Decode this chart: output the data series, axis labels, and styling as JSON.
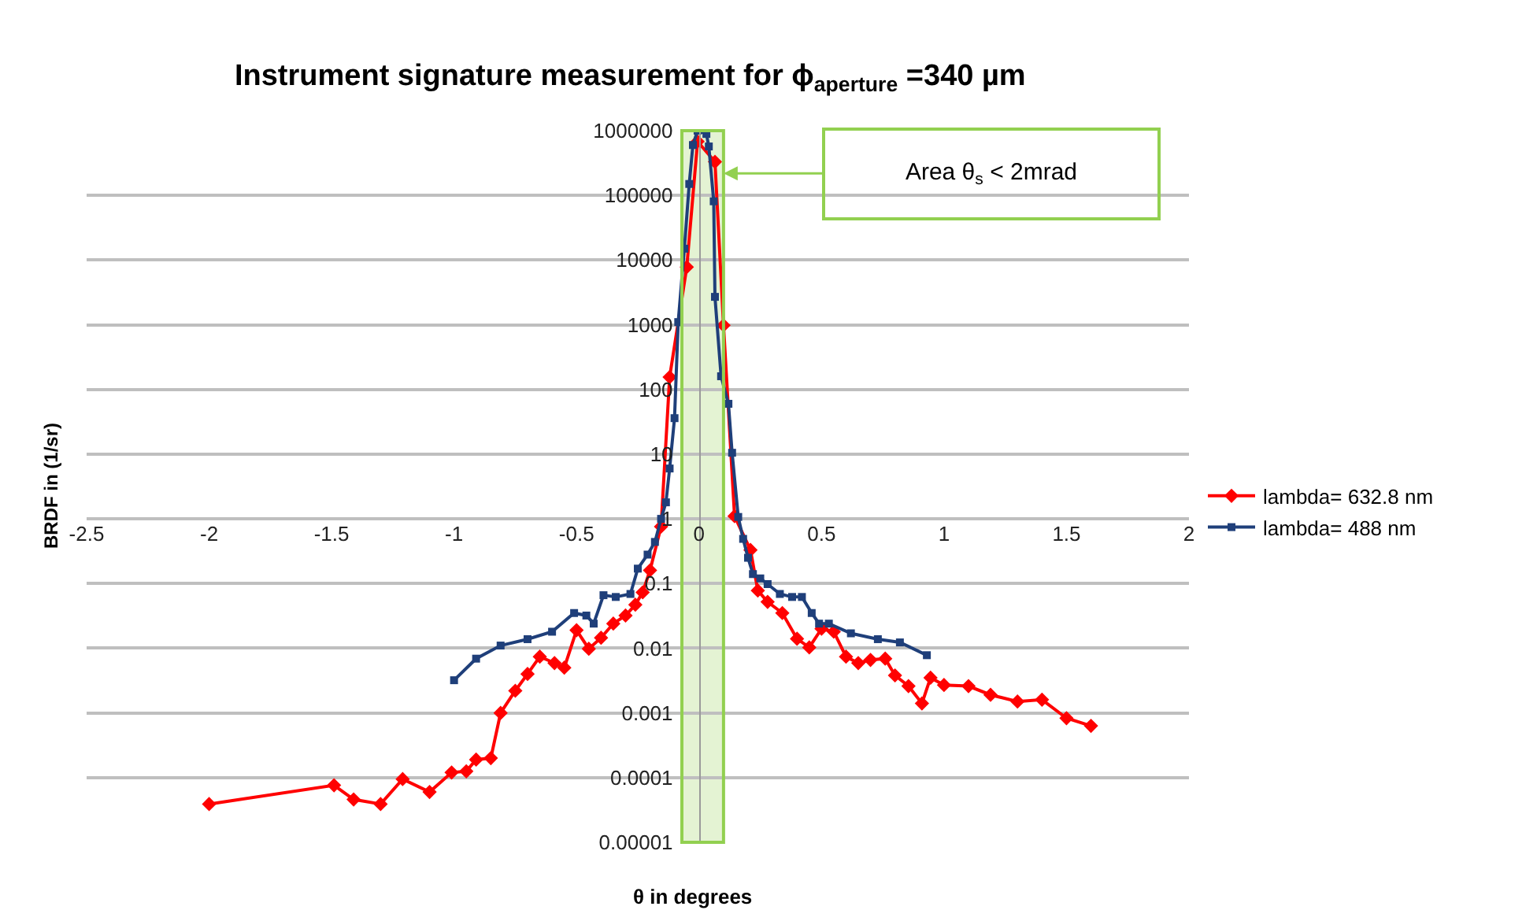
{
  "chart_data": {
    "type": "line",
    "title": "Instrument signature measurement for ϕ$_{aperture}$ =340 µm",
    "xlabel": "θ in degrees",
    "ylabel": "BRDF in (1/sr)",
    "log": "y",
    "xlim": [
      -2.5,
      2
    ],
    "xticks": [
      -2.5,
      -2,
      -1.5,
      -1,
      -0.5,
      0,
      0.5,
      1,
      1.5,
      2
    ],
    "ylim": [
      1e-05,
      1000000
    ],
    "yticks": [
      {
        "value": 1e-05,
        "label": "0.00001"
      },
      0.0001,
      0.001,
      0.01,
      0.1,
      1,
      10,
      100,
      1000,
      10000,
      100000,
      1000000
    ],
    "grid": "y",
    "legend": "right",
    "series": [
      {
        "name": "lambda= 632.8 nm",
        "color": "#ff0000",
        "marker": "diamond",
        "x": [
          -2.0,
          -1.49,
          -1.41,
          -1.3,
          -1.21,
          -1.1,
          -1.01,
          -0.95,
          -0.91,
          -0.85,
          -0.81,
          -0.75,
          -0.7,
          -0.65,
          -0.59,
          -0.55,
          -0.5,
          -0.45,
          -0.4,
          -0.35,
          -0.3,
          -0.26,
          -0.23,
          -0.2,
          -0.155,
          -0.12,
          -0.05,
          -0.006,
          0.065,
          0.1,
          0.145,
          0.21,
          0.24,
          0.28,
          0.34,
          0.4,
          0.45,
          0.5,
          0.55,
          0.6,
          0.65,
          0.7,
          0.76,
          0.8,
          0.855,
          0.91,
          0.945,
          1.0,
          1.1,
          1.19,
          1.3,
          1.4,
          1.5,
          1.6
        ],
        "values": [
          3.9e-05,
          7.6e-05,
          4.6e-05,
          3.9e-05,
          9.5e-05,
          6e-05,
          0.00012,
          0.000125,
          0.00019,
          0.0002,
          0.001,
          0.0022,
          0.004,
          0.0074,
          0.0059,
          0.005,
          0.019,
          0.0098,
          0.0145,
          0.024,
          0.032,
          0.047,
          0.073,
          0.16,
          0.76,
          155,
          7800,
          680000,
          330000,
          980,
          1.1,
          0.33,
          0.078,
          0.052,
          0.035,
          0.014,
          0.0103,
          0.02,
          0.018,
          0.0074,
          0.0059,
          0.0066,
          0.0069,
          0.0038,
          0.0026,
          0.0014,
          0.0035,
          0.0027,
          0.0026,
          0.0019,
          0.0015,
          0.0016,
          0.00083,
          0.00063
        ]
      },
      {
        "name": "lambda= 488 nm",
        "color": "#1f3f7a",
        "marker": "square",
        "x": [
          -1.0,
          -0.91,
          -0.81,
          -0.7,
          -0.6,
          -0.51,
          -0.46,
          -0.43,
          -0.39,
          -0.34,
          -0.28,
          -0.25,
          -0.21,
          -0.18,
          -0.155,
          -0.135,
          -0.12,
          -0.1,
          -0.085,
          -0.06,
          -0.04,
          -0.025,
          -0.006,
          0.03,
          0.04,
          0.06,
          0.065,
          0.09,
          0.12,
          0.135,
          0.16,
          0.18,
          0.2,
          0.22,
          0.25,
          0.28,
          0.33,
          0.38,
          0.42,
          0.46,
          0.49,
          0.53,
          0.62,
          0.73,
          0.82,
          0.93
        ],
        "values": [
          0.0032,
          0.0069,
          0.011,
          0.0138,
          0.018,
          0.035,
          0.032,
          0.024,
          0.066,
          0.062,
          0.069,
          0.17,
          0.28,
          0.44,
          1.0,
          1.8,
          6,
          36,
          1100,
          15000,
          150000,
          600000,
          1000000,
          890000,
          570000,
          81000,
          2700,
          160,
          60,
          10.5,
          1.07,
          0.49,
          0.25,
          0.14,
          0.12,
          0.098,
          0.069,
          0.062,
          0.062,
          0.035,
          0.024,
          0.024,
          0.017,
          0.0138,
          0.0123,
          0.0078
        ]
      }
    ],
    "bands": [
      {
        "axis": "x",
        "from": -0.07,
        "to": 0.1,
        "color": "#92d050"
      }
    ],
    "annotations": [
      "Area θ$_{s}$ < 2mrad"
    ]
  }
}
